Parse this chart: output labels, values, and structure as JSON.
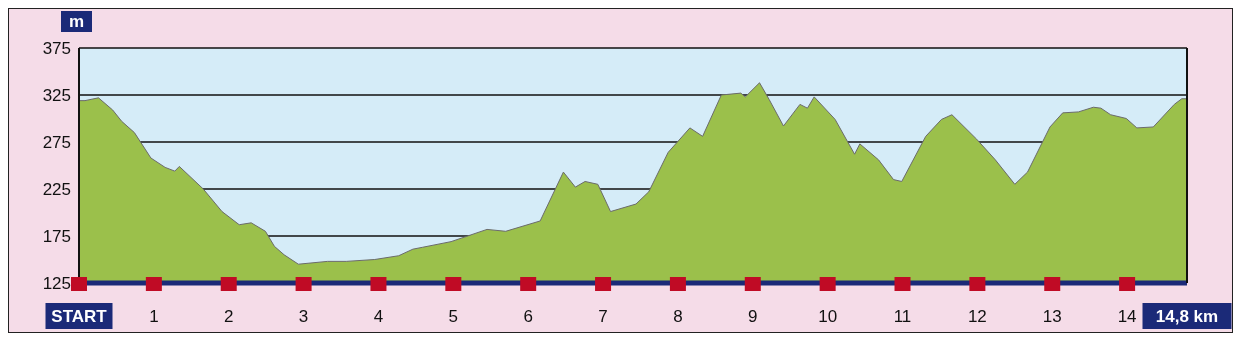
{
  "chart_data": {
    "type": "area",
    "ylabel": "m",
    "color": "#9bc04b",
    "x": [
      0,
      0.08,
      0.26,
      0.45,
      0.57,
      0.74,
      0.96,
      1.15,
      1.28,
      1.34,
      1.66,
      1.91,
      2.14,
      2.3,
      2.49,
      2.61,
      2.74,
      2.93,
      3.06,
      3.32,
      3.57,
      3.95,
      4.27,
      4.46,
      4.59,
      4.97,
      5.45,
      5.7,
      6.16,
      6.47,
      6.63,
      6.76,
      6.93,
      7.1,
      7.44,
      7.61,
      7.87,
      8.16,
      8.33,
      8.58,
      8.84,
      8.9,
      9.09,
      9.22,
      9.41,
      9.63,
      9.73,
      9.82,
      10.1,
      10.36,
      10.43,
      10.68,
      10.88,
      10.99,
      11.31,
      11.52,
      11.66,
      11.99,
      12.24,
      12.5,
      12.67,
      12.97,
      13.14,
      13.35,
      13.55,
      13.65,
      13.78,
      13.99,
      14.13,
      14.35,
      14.63,
      14.73,
      14.8
    ],
    "values": [
      319,
      319,
      322,
      309,
      297,
      285,
      258,
      248,
      244,
      249,
      225,
      201,
      187,
      189,
      180,
      164,
      155,
      145,
      146,
      148,
      148,
      150,
      154,
      161,
      163,
      169,
      182,
      180,
      191,
      243,
      227,
      233,
      230,
      201,
      209,
      222,
      264,
      290,
      281,
      325,
      327,
      323,
      338,
      320,
      292,
      315,
      311,
      323,
      299,
      262,
      273,
      256,
      235,
      233,
      281,
      299,
      304,
      278,
      256,
      230,
      243,
      291,
      306,
      307,
      312,
      311,
      304,
      300,
      290,
      291,
      315,
      321,
      321
    ],
    "xlim": [
      0,
      14.8
    ],
    "xticks": [
      {
        "value": 0,
        "label": "START"
      },
      1,
      2,
      3,
      4,
      5,
      6,
      7,
      8,
      9,
      10,
      11,
      12,
      13,
      14,
      {
        "value": 14.8,
        "label": "14,8 km"
      }
    ],
    "ylim": [
      125,
      375
    ],
    "yticks": [
      125,
      175,
      225,
      275,
      325,
      375
    ],
    "grid": "y"
  }
}
